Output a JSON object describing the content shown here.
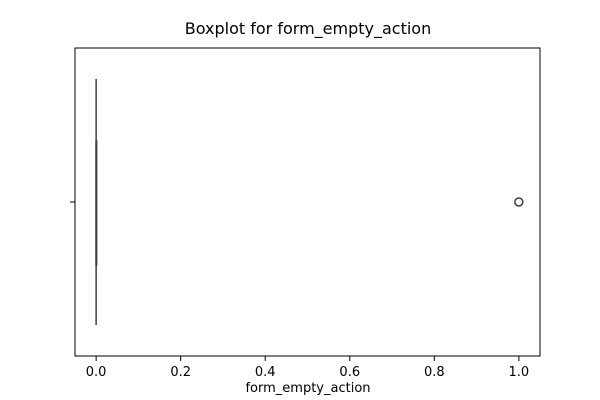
{
  "chart_data": {
    "type": "boxplot",
    "title": "Boxplot for form_empty_action",
    "xlabel": "form_empty_action",
    "ylabel": "",
    "xlim": [
      -0.05,
      1.05
    ],
    "xticks": [
      0.0,
      0.2,
      0.4,
      0.6,
      0.8,
      1.0
    ],
    "xtick_labels": [
      "0.0",
      "0.2",
      "0.4",
      "0.6",
      "0.8",
      "1.0"
    ],
    "box": {
      "whisker_low": 0.0,
      "q1": 0.0,
      "median": 0.0,
      "q3": 0.0,
      "whisker_high": 0.0
    },
    "outliers": [
      1.0
    ],
    "grid": false,
    "colors": {
      "box_edge": "#3f3f3f",
      "outlier_edge": "#3f3f3f",
      "axes": "#000000"
    }
  }
}
